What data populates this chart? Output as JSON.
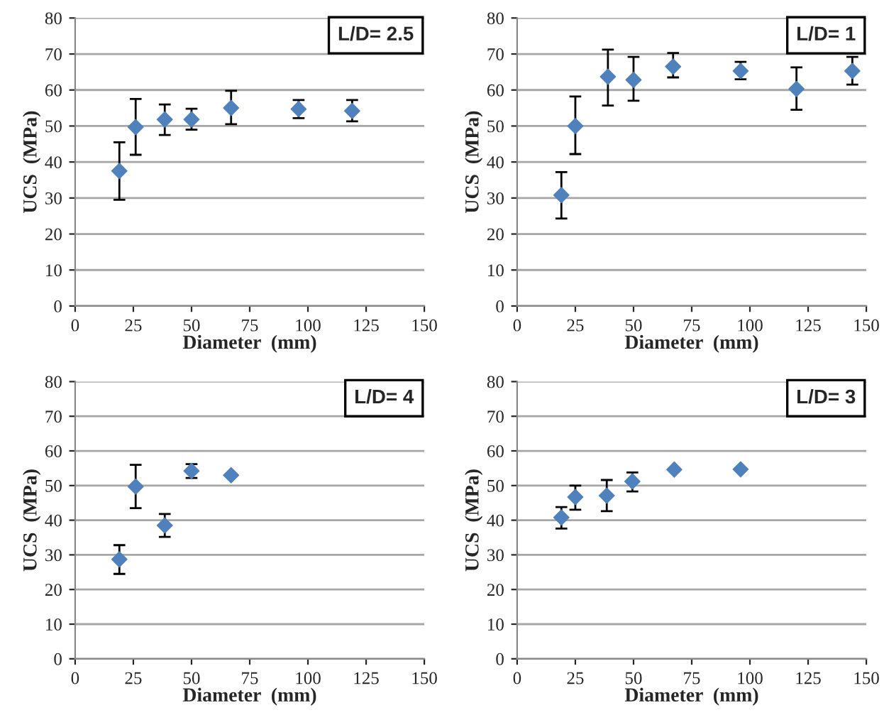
{
  "chart_data": [
    {
      "type": "scatter",
      "title": "L/D= 2.5",
      "xlabel": "Diameter  (mm)",
      "ylabel": "UCS  (MPa)",
      "xlim": [
        0,
        150
      ],
      "xticks": [
        0,
        25,
        50,
        75,
        100,
        125,
        150
      ],
      "ylim": [
        0,
        80
      ],
      "yticks": [
        0,
        10,
        20,
        30,
        40,
        50,
        60,
        70,
        80
      ],
      "grid": "y",
      "marker": "diamond",
      "series": [
        {
          "color": "#4f81bd",
          "x": [
            19,
            26,
            38.5,
            50,
            67,
            96,
            119
          ],
          "values": [
            37.5,
            49.7,
            51.8,
            51.8,
            55,
            54.7,
            54.2
          ],
          "errors": [
            [
              29.5,
              45.5
            ],
            [
              42,
              57.5
            ],
            [
              47.5,
              56
            ],
            [
              49,
              54.8
            ],
            [
              50.5,
              59.8
            ],
            [
              52.2,
              57.2
            ],
            [
              51.3,
              57.2
            ]
          ]
        }
      ]
    },
    {
      "type": "scatter",
      "title": "L/D= 1",
      "xlabel": "Diameter  (mm)",
      "ylabel": "UCS  (MPa)",
      "xlim": [
        0,
        150
      ],
      "xticks": [
        0,
        25,
        50,
        75,
        100,
        125,
        150
      ],
      "ylim": [
        0,
        80
      ],
      "yticks": [
        0,
        10,
        20,
        30,
        40,
        50,
        60,
        70,
        80
      ],
      "grid": "y",
      "marker": "diamond",
      "series": [
        {
          "color": "#4f81bd",
          "x": [
            19,
            25,
            39,
            50,
            67,
            96,
            120,
            144
          ],
          "values": [
            30.8,
            50,
            63.7,
            62.8,
            66.5,
            65.3,
            60.3,
            65.3
          ],
          "errors": [
            [
              24.3,
              37.2
            ],
            [
              42.2,
              58.2
            ],
            [
              55.7,
              71.2
            ],
            [
              57,
              69.2
            ],
            [
              63.5,
              70.3
            ],
            [
              63,
              67.8
            ],
            [
              54.5,
              66.3
            ],
            [
              61.5,
              69.2
            ]
          ]
        }
      ]
    },
    {
      "type": "scatter",
      "title": "L/D= 4",
      "xlabel": "Diameter  (mm)",
      "ylabel": "UCS  (MPa)",
      "xlim": [
        0,
        150
      ],
      "xticks": [
        0,
        25,
        50,
        75,
        100,
        125,
        150
      ],
      "ylim": [
        0,
        80
      ],
      "yticks": [
        0,
        10,
        20,
        30,
        40,
        50,
        60,
        70,
        80
      ],
      "grid": "y",
      "marker": "diamond",
      "series": [
        {
          "color": "#4f81bd",
          "x": [
            19,
            26,
            38.5,
            50,
            67
          ],
          "values": [
            28.7,
            49.7,
            38.5,
            54.2,
            53
          ],
          "errors": [
            [
              24.5,
              32.8
            ],
            [
              43.5,
              56
            ],
            [
              35.2,
              41.8
            ],
            [
              52.2,
              56.2
            ],
            null
          ]
        }
      ]
    },
    {
      "type": "scatter",
      "title": "L/D= 3",
      "xlabel": "Diameter  (mm)",
      "ylabel": "UCS  (MPa)",
      "xlim": [
        0,
        150
      ],
      "xticks": [
        0,
        25,
        50,
        75,
        100,
        125,
        150
      ],
      "ylim": [
        0,
        80
      ],
      "yticks": [
        0,
        10,
        20,
        30,
        40,
        50,
        60,
        70,
        80
      ],
      "grid": "y",
      "marker": "diamond",
      "series": [
        {
          "color": "#4f81bd",
          "x": [
            19,
            25,
            38.5,
            49.5,
            67.5,
            96
          ],
          "values": [
            40.8,
            46.7,
            47.1,
            51.2,
            54.6,
            54.7
          ],
          "errors": [
            [
              37.6,
              43.8
            ],
            [
              43,
              50
            ],
            [
              42.6,
              51.6
            ],
            [
              48.3,
              53.8
            ],
            null,
            null
          ]
        }
      ]
    }
  ]
}
